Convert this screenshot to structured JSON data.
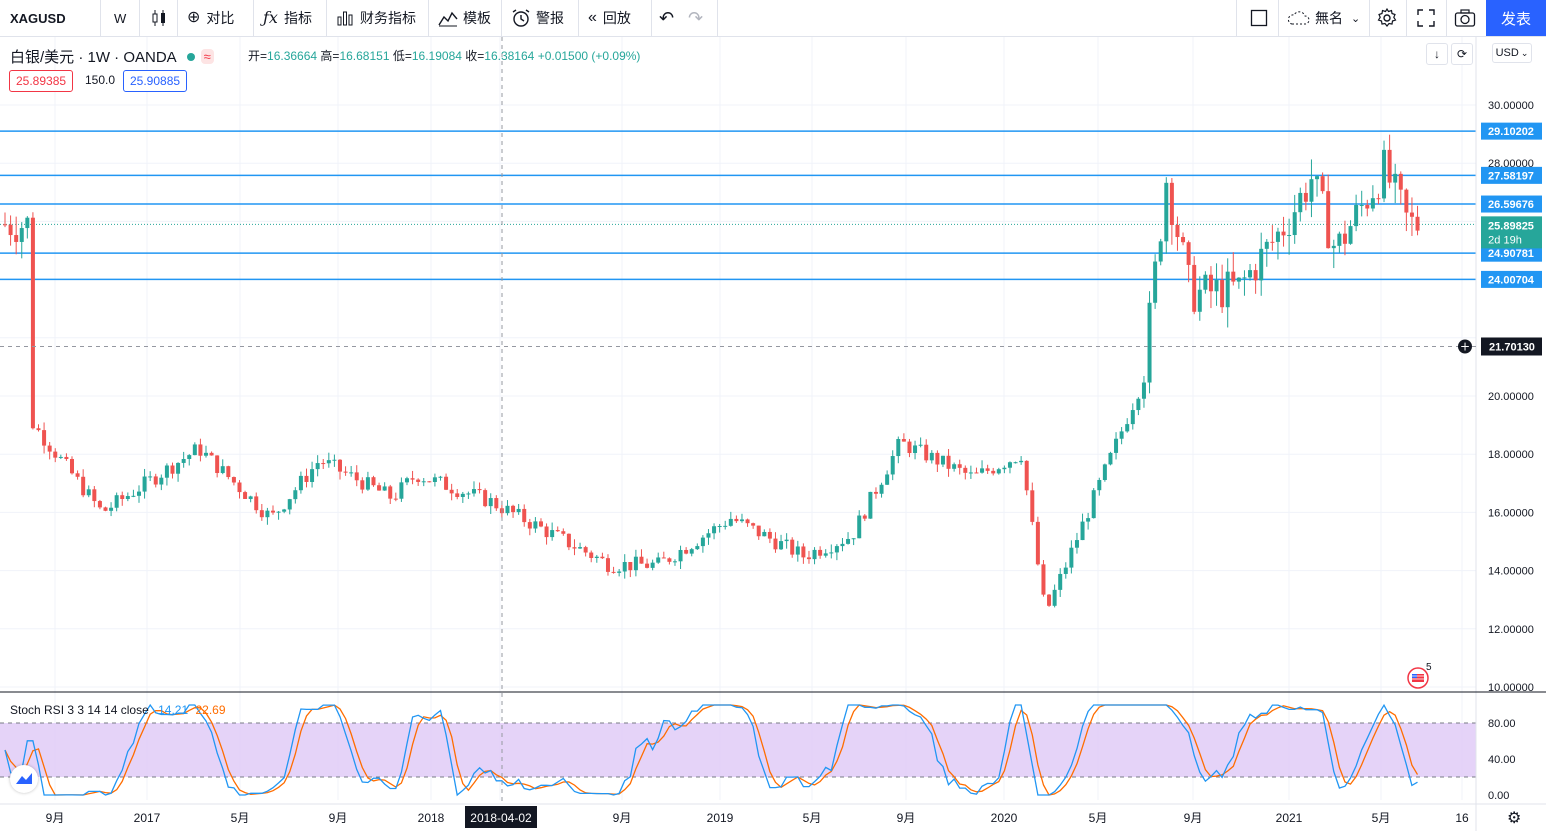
{
  "toolbar": {
    "symbol": "XAGUSD",
    "interval": "W",
    "compare": "对比",
    "indicators": "指标",
    "financials": "财务指标",
    "templates": "模板",
    "alert": "警报",
    "replay": "回放",
    "layout_name": "無名",
    "publish": "发表"
  },
  "legend": {
    "title": "白银/美元 · 1W · OANDA",
    "open_label": "开=",
    "open": "16.36664",
    "high_label": "高=",
    "high": "16.68151",
    "low_label": "低=",
    "low": "16.19084",
    "close_label": "收=",
    "close": "16.38164",
    "change": "+0.01500 (+0.09%)",
    "sell": "25.89385",
    "spread": "150.0",
    "buy": "25.90885"
  },
  "currency": "USD",
  "price_axis": {
    "ticks": [
      "30.00000",
      "28.00000",
      "20.00000",
      "18.00000",
      "16.00000",
      "14.00000",
      "12.00000",
      "10.00000"
    ],
    "levels": [
      "29.10202",
      "27.58197",
      "26.59676",
      "24.90781",
      "24.00704"
    ],
    "last_price": "25.89825",
    "countdown": "2d 19h",
    "crosshair_price": "21.70130"
  },
  "time_axis": {
    "labels": [
      "9月",
      "2017",
      "5月",
      "9月",
      "2018",
      "9月",
      "2019",
      "5月",
      "9月",
      "2020",
      "5月",
      "9月",
      "2021",
      "5月",
      "16"
    ],
    "crosshair_date": "2018-04-02"
  },
  "stoch": {
    "title": "Stoch RSI 3 3 14 14 close",
    "k": "14.21",
    "d": "22.69",
    "ticks": [
      "80.00",
      "40.00",
      "0.00"
    ]
  },
  "events_badge": "5",
  "colors": {
    "up": "#26a69a",
    "down": "#ef5350",
    "level": "#2196f3",
    "k_line": "#2196f3",
    "d_line": "#ff6d00",
    "accent": "#2962ff"
  },
  "chart_data": {
    "type": "candlestick",
    "symbol": "XAGUSD",
    "interval": "1W",
    "ylim": [
      10,
      30.9
    ],
    "close_series_anchors": [
      {
        "x": "2016-09",
        "y": 19.2
      },
      {
        "x": "2016-12",
        "y": 16.0
      },
      {
        "x": "2017-04",
        "y": 18.2
      },
      {
        "x": "2017-07",
        "y": 15.8
      },
      {
        "x": "2017-09",
        "y": 17.8
      },
      {
        "x": "2017-12",
        "y": 16.5
      },
      {
        "x": "2018-01",
        "y": 17.3
      },
      {
        "x": "2018-04",
        "y": 16.4
      },
      {
        "x": "2018-09",
        "y": 14.2
      },
      {
        "x": "2018-11",
        "y": 14.2
      },
      {
        "x": "2019-02",
        "y": 15.8
      },
      {
        "x": "2019-05",
        "y": 14.5
      },
      {
        "x": "2019-07",
        "y": 15.2
      },
      {
        "x": "2019-09",
        "y": 18.4
      },
      {
        "x": "2019-12",
        "y": 17.2
      },
      {
        "x": "2020-02",
        "y": 18.0
      },
      {
        "x": "2020-03",
        "y": 12.5
      },
      {
        "x": "2020-05",
        "y": 16.5
      },
      {
        "x": "2020-07",
        "y": 20.5
      },
      {
        "x": "2020-08",
        "y": 27.5
      },
      {
        "x": "2020-09",
        "y": 23.5
      },
      {
        "x": "2020-11",
        "y": 23.7
      },
      {
        "x": "2021-01",
        "y": 26.0
      },
      {
        "x": "2021-02",
        "y": 27.5
      },
      {
        "x": "2021-03",
        "y": 25.0
      },
      {
        "x": "2021-05",
        "y": 27.8
      },
      {
        "x": "2021-06",
        "y": 25.9
      }
    ],
    "horizontal_levels": [
      29.10202,
      27.58197,
      26.59676,
      24.90781,
      24.00704
    ],
    "stoch_rsi": {
      "k": 14.21,
      "d": 22.69,
      "band_upper": 80,
      "band_lower": 20
    }
  }
}
